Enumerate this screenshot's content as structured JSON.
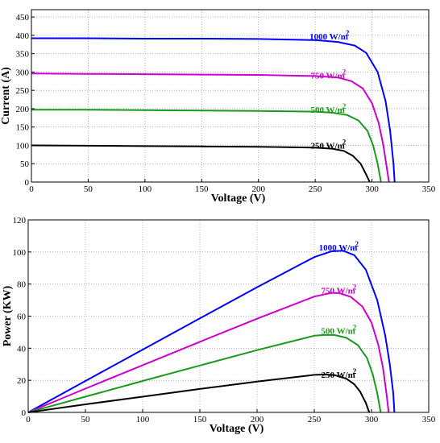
{
  "chart_data": [
    {
      "type": "line",
      "title": "",
      "xlabel": "Voltage (V)",
      "ylabel": "Current (A)",
      "xlim": [
        0,
        350
      ],
      "ylim": [
        0,
        470
      ],
      "xticks": [
        0,
        50,
        100,
        150,
        200,
        250,
        300,
        350
      ],
      "yticks": [
        0,
        50,
        100,
        150,
        200,
        250,
        300,
        350,
        400,
        450
      ],
      "grid": true,
      "series": [
        {
          "name": "1000 W/m2",
          "color": "#0000ff",
          "x": [
            0,
            50,
            100,
            150,
            200,
            250,
            270,
            285,
            295,
            305,
            312,
            316,
            319,
            320
          ],
          "y": [
            392,
            392,
            391,
            391,
            390,
            387,
            382,
            372,
            352,
            300,
            220,
            140,
            50,
            0
          ]
        },
        {
          "name": "750 W/m2",
          "color": "#cc00cc",
          "x": [
            0,
            50,
            100,
            150,
            200,
            250,
            270,
            282,
            292,
            300,
            306,
            310,
            313,
            315
          ],
          "y": [
            296,
            295,
            294,
            293,
            292,
            289,
            285,
            275,
            255,
            215,
            160,
            100,
            40,
            0
          ]
        },
        {
          "name": "500 W/m2",
          "color": "#1a9a1a",
          "x": [
            0,
            50,
            100,
            150,
            200,
            250,
            265,
            278,
            288,
            296,
            301,
            305,
            308
          ],
          "y": [
            197,
            197,
            196,
            195,
            194,
            192,
            189,
            183,
            168,
            140,
            100,
            50,
            0
          ]
        },
        {
          "name": "250 W/m2",
          "color": "#000000",
          "x": [
            0,
            50,
            100,
            150,
            200,
            250,
            265,
            275,
            283,
            290,
            295,
            298
          ],
          "y": [
            100,
            99,
            98,
            97,
            96,
            94,
            91,
            85,
            72,
            50,
            20,
            0
          ]
        }
      ]
    },
    {
      "type": "line",
      "title": "",
      "xlabel": "Voltage (V)",
      "ylabel": "Power (KW)",
      "xlim": [
        0,
        350
      ],
      "ylim": [
        0,
        120
      ],
      "xticks": [
        0,
        50,
        100,
        150,
        200,
        250,
        300,
        350
      ],
      "yticks": [
        0,
        20,
        40,
        60,
        80,
        100,
        120
      ],
      "grid": true,
      "series": [
        {
          "name": "1000 W/m2",
          "color": "#0000ff",
          "x": [
            0,
            50,
            100,
            150,
            200,
            250,
            265,
            275,
            285,
            295,
            305,
            312,
            316,
            319,
            320
          ],
          "y": [
            0,
            19.6,
            39.1,
            58.6,
            78,
            96.8,
            100.4,
            100.8,
            98,
            89,
            70,
            48,
            30,
            12,
            0
          ]
        },
        {
          "name": "750 W/m2",
          "color": "#cc00cc",
          "x": [
            0,
            50,
            100,
            150,
            200,
            250,
            265,
            272,
            282,
            292,
            300,
            306,
            310,
            313,
            315
          ],
          "y": [
            0,
            14.8,
            29.4,
            44,
            58.4,
            72.2,
            74.5,
            74.3,
            72,
            66,
            56,
            42,
            28,
            12,
            0
          ]
        },
        {
          "name": "500 W/m2",
          "color": "#1a9a1a",
          "x": [
            0,
            50,
            100,
            150,
            200,
            250,
            260,
            268,
            278,
            288,
            296,
            301,
            305,
            308
          ],
          "y": [
            0,
            9.8,
            19.6,
            29.2,
            38.8,
            47.8,
            48.3,
            48.2,
            46.5,
            42,
            34,
            24,
            12,
            0
          ]
        },
        {
          "name": "250 W/m2",
          "color": "#000000",
          "x": [
            0,
            50,
            100,
            150,
            200,
            250,
            260,
            268,
            278,
            285,
            290,
            295,
            298
          ],
          "y": [
            0,
            5,
            9.8,
            14.6,
            19.2,
            23.4,
            23.6,
            23.2,
            21,
            17.5,
            13,
            6,
            0
          ]
        }
      ]
    }
  ],
  "curve_labels_top": [
    {
      "text": "1000 W/m",
      "sup": "2",
      "color": "#0000ff",
      "at": [
        245,
        397
      ]
    },
    {
      "text": "750 W/m",
      "sup": "2",
      "color": "#cc00cc",
      "at": [
        246,
        291
      ]
    },
    {
      "text": "500 W/m",
      "sup": "2",
      "color": "#1a9a1a",
      "at": [
        246,
        198
      ]
    },
    {
      "text": "250 W/m",
      "sup": "2",
      "color": "#000000",
      "at": [
        246,
        100
      ]
    }
  ],
  "curve_labels_bottom": [
    {
      "text": "1000 W/m",
      "sup": "2",
      "color": "#0000ff",
      "at": [
        254,
        103
      ]
    },
    {
      "text": "750 W/m",
      "sup": "2",
      "color": "#cc00cc",
      "at": [
        256,
        76
      ]
    },
    {
      "text": "500 W/m",
      "sup": "2",
      "color": "#1a9a1a",
      "at": [
        256,
        51
      ]
    },
    {
      "text": "250 W/m",
      "sup": "2",
      "color": "#000000",
      "at": [
        256,
        23.5
      ]
    }
  ]
}
